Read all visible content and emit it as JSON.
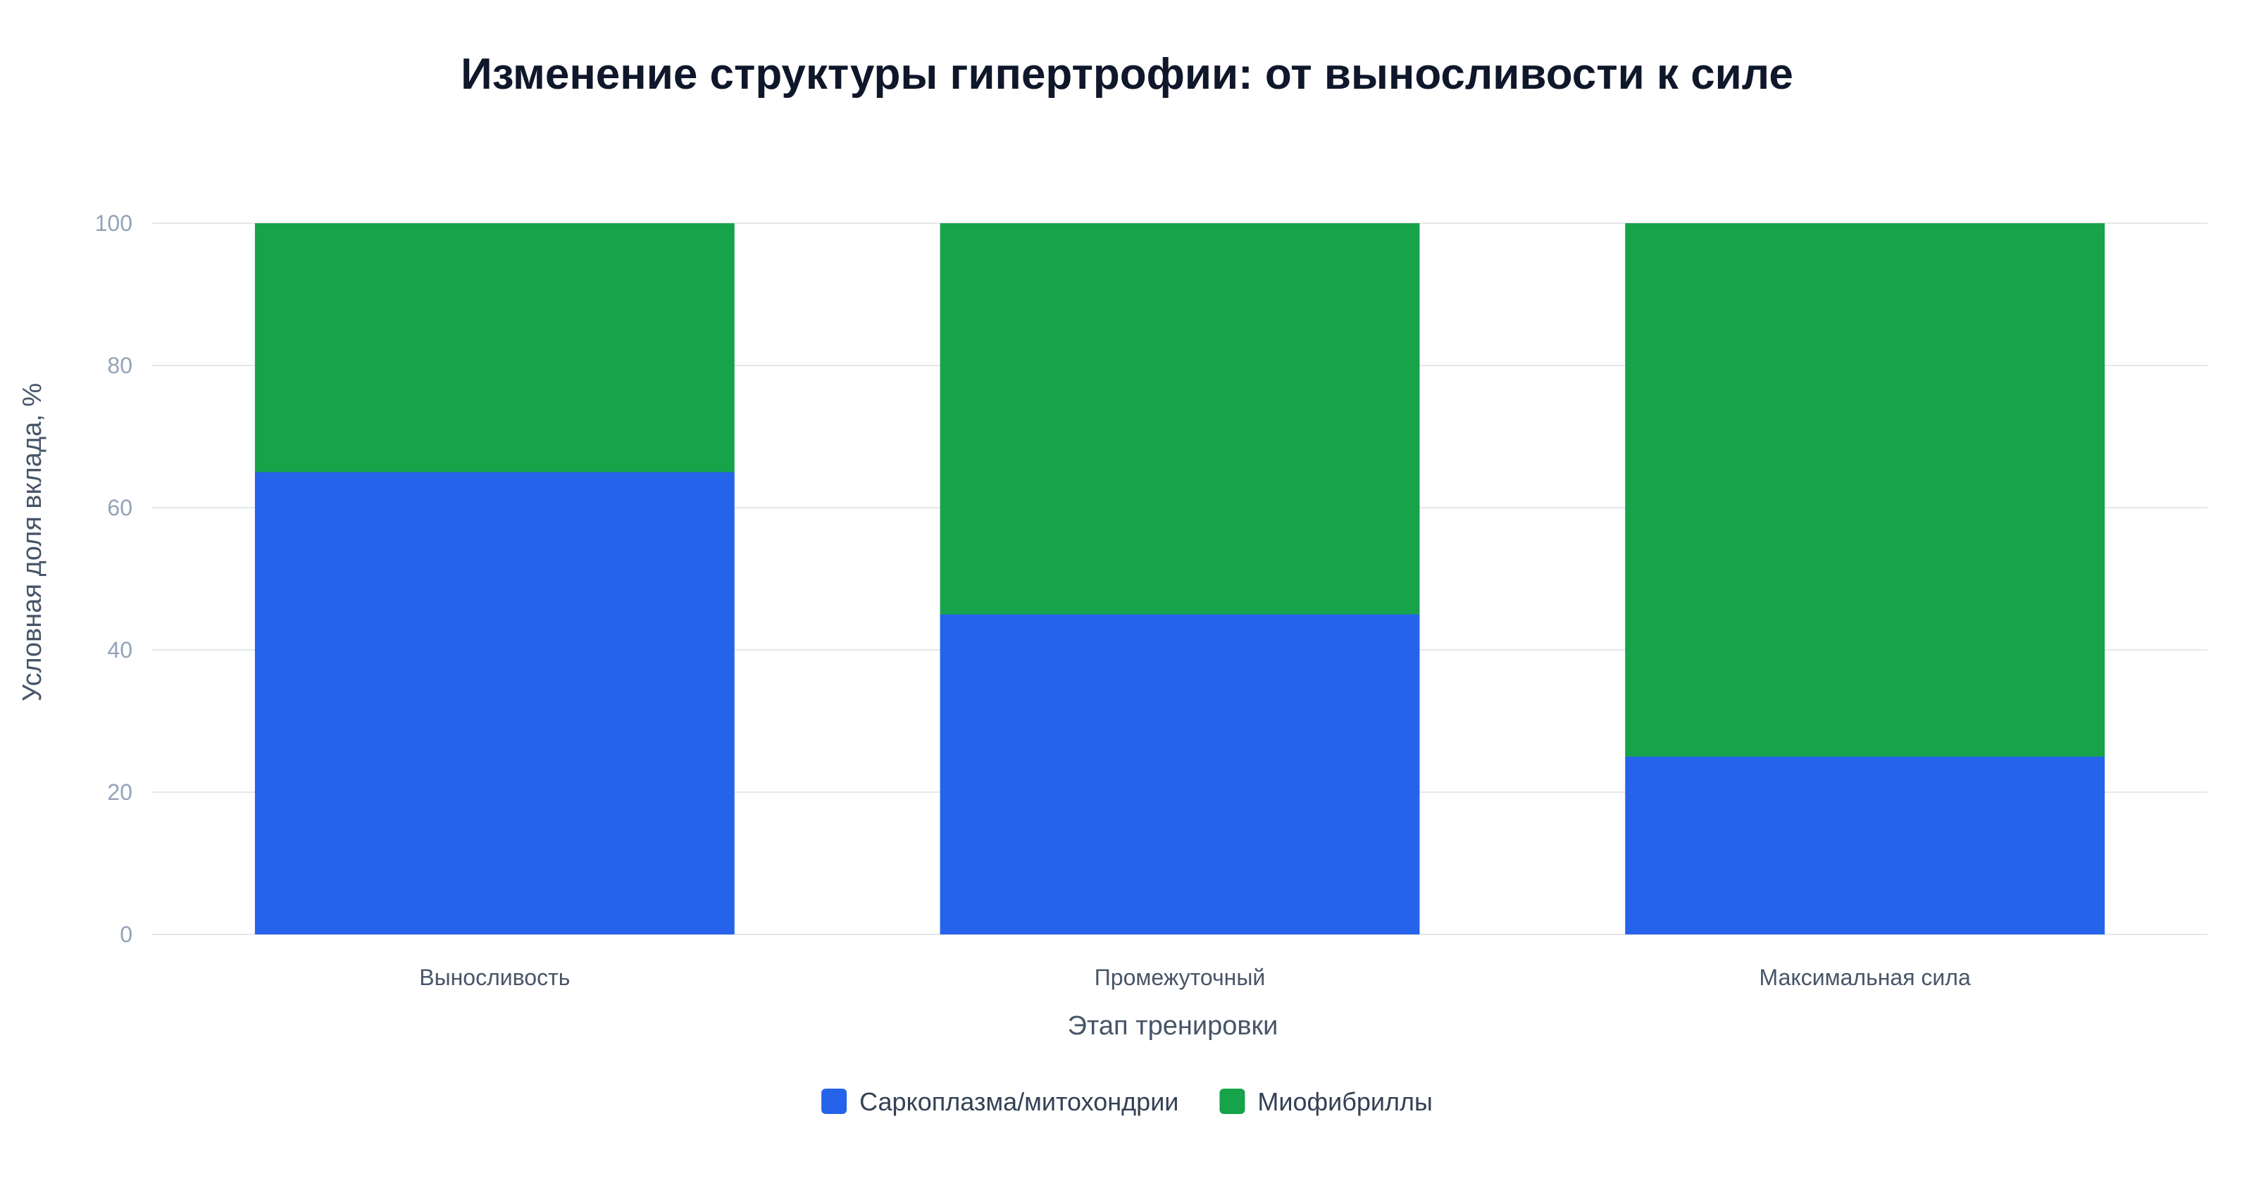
{
  "chart_data": {
    "type": "bar",
    "stacked": true,
    "title": "Изменение структуры гипертрофии: от выносливости к силе",
    "xlabel": "Этап тренировки",
    "ylabel": "Условная доля вклада, %",
    "ylim": [
      0,
      100
    ],
    "yticks": [
      0,
      20,
      40,
      60,
      80,
      100
    ],
    "categories": [
      "Выносливость",
      "Промежуточный",
      "Максимальная сила"
    ],
    "series": [
      {
        "name": "Саркоплазма/митохондрии",
        "color": "#2563eb",
        "values": [
          65,
          45,
          25
        ]
      },
      {
        "name": "Миофибриллы",
        "color": "#16a34a",
        "values": [
          35,
          55,
          75
        ]
      }
    ],
    "grid": true,
    "legend": "bottom-center"
  }
}
